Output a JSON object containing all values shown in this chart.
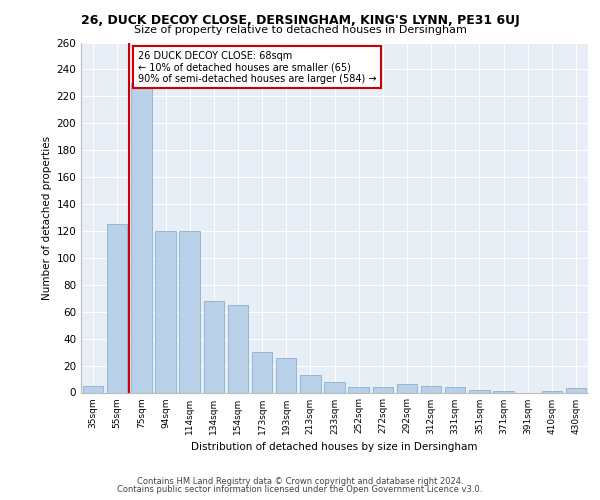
{
  "title1": "26, DUCK DECOY CLOSE, DERSINGHAM, KING'S LYNN, PE31 6UJ",
  "title2": "Size of property relative to detached houses in Dersingham",
  "xlabel": "Distribution of detached houses by size in Dersingham",
  "ylabel": "Number of detached properties",
  "categories": [
    "35sqm",
    "55sqm",
    "75sqm",
    "94sqm",
    "114sqm",
    "134sqm",
    "154sqm",
    "173sqm",
    "193sqm",
    "213sqm",
    "233sqm",
    "252sqm",
    "272sqm",
    "292sqm",
    "312sqm",
    "331sqm",
    "351sqm",
    "371sqm",
    "391sqm",
    "410sqm",
    "430sqm"
  ],
  "values": [
    5,
    125,
    230,
    120,
    120,
    68,
    65,
    30,
    26,
    13,
    8,
    4,
    4,
    6,
    5,
    4,
    2,
    1,
    0,
    1,
    3
  ],
  "bar_color": "#b8d0e8",
  "bar_edge_color": "#8ab0d0",
  "annotation_line1": "26 DUCK DECOY CLOSE: 68sqm",
  "annotation_line2": "← 10% of detached houses are smaller (65)",
  "annotation_line3": "90% of semi-detached houses are larger (584) →",
  "annotation_box_color": "#ffffff",
  "annotation_box_edge": "#cc0000",
  "vline_color": "#cc0000",
  "ylim": [
    0,
    260
  ],
  "yticks": [
    0,
    20,
    40,
    60,
    80,
    100,
    120,
    140,
    160,
    180,
    200,
    220,
    240,
    260
  ],
  "bg_color": "#e8eef5",
  "footer1": "Contains HM Land Registry data © Crown copyright and database right 2024.",
  "footer2": "Contains public sector information licensed under the Open Government Licence v3.0."
}
